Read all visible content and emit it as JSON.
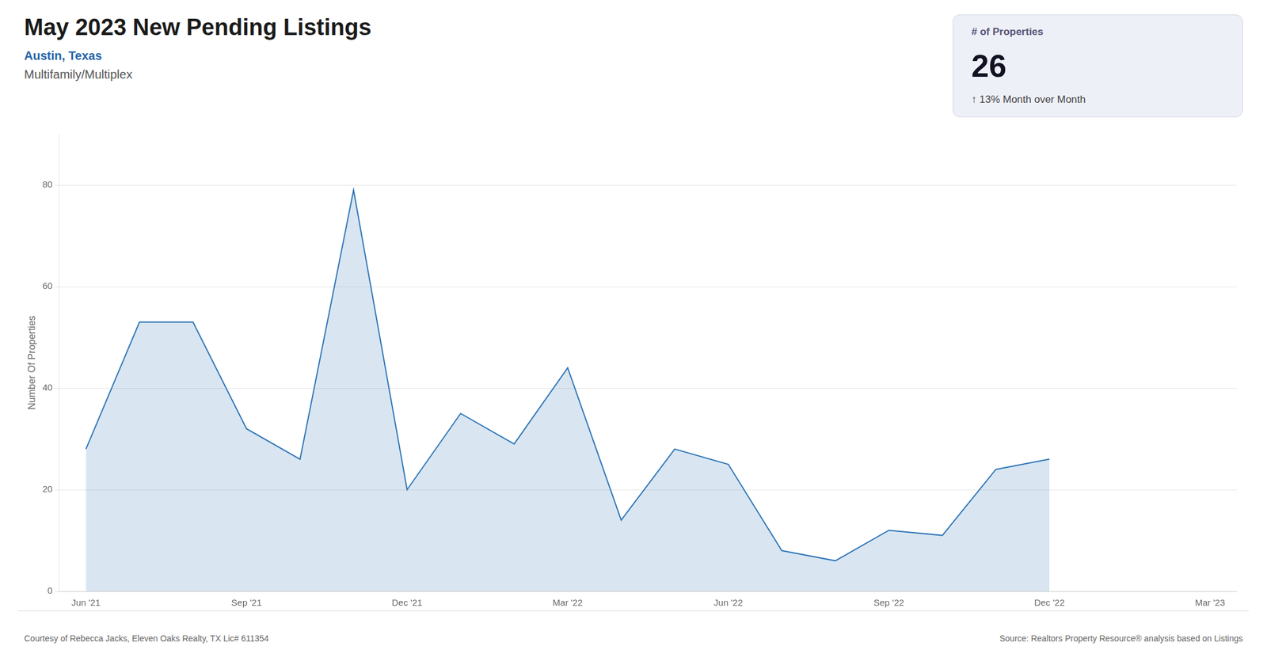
{
  "chart_data": {
    "type": "line",
    "title": "May 2023 New Pending Listings",
    "subtitle": [
      "Austin, Texas",
      "Multifamily/Multiplex"
    ],
    "annotations": [
      "# of Properties",
      "26",
      "↑  13% Month over Month",
      "Courtesy of Rebecca Jacks, Eleven Oaks Realty, TX Lic# 611354",
      "Source: Realtors Property Resource® analysis based on Listings"
    ],
    "categories": [
      "Jun '21",
      null,
      null,
      "Sep '21",
      null,
      null,
      "Dec '21",
      null,
      null,
      "Mar '22",
      null,
      null,
      "Jun '22",
      null,
      null,
      "Sep '22",
      null,
      null,
      "Dec '22",
      null,
      null,
      "Mar '23"
    ],
    "values": [
      28,
      53,
      53,
      32,
      26,
      79,
      20,
      35,
      29,
      44,
      14,
      28,
      25,
      8,
      6,
      12,
      11,
      24,
      26,
      null,
      null,
      null
    ],
    "color": "#2e75b6",
    "y_label": "Number Of Properties",
    "ylim": [
      0,
      90
    ],
    "yticks": [
      0,
      20,
      40,
      60,
      80
    ],
    "grid": true
  }
}
